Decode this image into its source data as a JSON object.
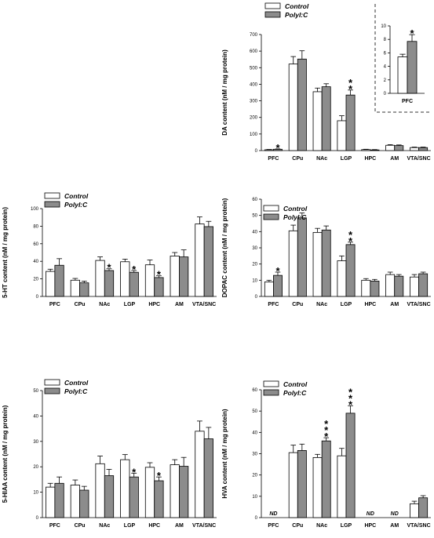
{
  "legend": {
    "control": "Control",
    "polyic": "PolyI:C"
  },
  "colors": {
    "control": "#ffffff",
    "polyic": "#8c8c8c",
    "stroke": "#000000"
  },
  "chart_data": [
    {
      "id": "da",
      "type": "bar",
      "ylabel": "DA content (nM / mg protein)",
      "ylim": [
        0,
        700
      ],
      "yticks": [
        0,
        100,
        200,
        300,
        400,
        500,
        600,
        700
      ],
      "categories": [
        "PFC",
        "CPu",
        "NAc",
        "LGP",
        "HPC",
        "AM",
        "VTA/SNC"
      ],
      "series": [
        {
          "name": "Control",
          "values": [
            5,
            522,
            355,
            180,
            6,
            32,
            18
          ],
          "errors": [
            2,
            45,
            22,
            30,
            2,
            4,
            3
          ]
        },
        {
          "name": "PolyI:C",
          "values": [
            8,
            552,
            385,
            335,
            4,
            30,
            18
          ],
          "errors": [
            2,
            50,
            18,
            30,
            2,
            4,
            3
          ]
        }
      ],
      "significance": [
        {
          "category": "PFC",
          "label": "*"
        },
        {
          "category": "LGP",
          "label": "**"
        }
      ],
      "legend_position": "top",
      "inset": {
        "categories": [
          "PFC"
        ],
        "ylim": [
          0,
          10
        ],
        "yticks": [
          0,
          2,
          4,
          6,
          8,
          10
        ],
        "series": [
          {
            "name": "Control",
            "values": [
              5.4
            ],
            "errors": [
              0.4
            ]
          },
          {
            "name": "PolyI:C",
            "values": [
              7.7
            ],
            "errors": [
              1.0
            ]
          }
        ],
        "significance": [
          {
            "category": "PFC",
            "label": "*"
          }
        ]
      }
    },
    {
      "id": "ht",
      "type": "bar",
      "ylabel": "5-HT content (nM / mg protein)",
      "ylim": [
        0,
        100
      ],
      "yticks": [
        0,
        20,
        40,
        60,
        80,
        100
      ],
      "categories": [
        "PFC",
        "CPu",
        "NAc",
        "LGP",
        "HPC",
        "AM",
        "VTA/SNC"
      ],
      "series": [
        {
          "name": "Control",
          "values": [
            28.5,
            18.5,
            41,
            39.5,
            36,
            46,
            82.5
          ],
          "errors": [
            2.5,
            2,
            4,
            3,
            5.5,
            4,
            8
          ]
        },
        {
          "name": "PolyI:C",
          "values": [
            35.5,
            15.5,
            29.5,
            27.5,
            21.5,
            45,
            79.5
          ],
          "errors": [
            7.5,
            2,
            2,
            2,
            2,
            8,
            6
          ]
        }
      ],
      "significance": [
        {
          "category": "NAc",
          "label": "*"
        },
        {
          "category": "LGP",
          "label": "*"
        },
        {
          "category": "HPC",
          "label": "*"
        }
      ],
      "legend_position": "top-left"
    },
    {
      "id": "dopac",
      "type": "bar",
      "ylabel": "DOPAC content (nM / mg protein)",
      "ylim": [
        0,
        60
      ],
      "yticks": [
        0,
        10,
        20,
        30,
        40,
        50,
        60
      ],
      "categories": [
        "PFC",
        "CPu",
        "NAc",
        "LGP",
        "HPC",
        "AM",
        "VTA/SNC"
      ],
      "series": [
        {
          "name": "Control",
          "values": [
            9,
            40.5,
            39.5,
            22,
            10,
            13.5,
            12
          ],
          "errors": [
            1,
            3.5,
            2.5,
            3,
            1,
            1.5,
            1.5
          ]
        },
        {
          "name": "PolyI:C",
          "values": [
            13,
            48.5,
            41,
            32,
            9.5,
            12.5,
            14
          ],
          "errors": [
            2,
            3,
            2.5,
            1.5,
            1,
            1,
            1
          ]
        }
      ],
      "significance": [
        {
          "category": "PFC",
          "label": "*"
        },
        {
          "category": "LGP",
          "label": "**"
        }
      ],
      "legend_position": "top-left"
    },
    {
      "id": "hiaa",
      "type": "bar",
      "ylabel": "5-HIAA content (nM / mg protein)",
      "ylim": [
        0,
        50
      ],
      "yticks": [
        0,
        10,
        20,
        30,
        40,
        50
      ],
      "categories": [
        "PFC",
        "CPu",
        "NAc",
        "LGP",
        "HPC",
        "AM",
        "VTA/SNC"
      ],
      "series": [
        {
          "name": "Control",
          "values": [
            12,
            12.8,
            21.2,
            22.8,
            19.8,
            20.8,
            34
          ],
          "errors": [
            1.5,
            2,
            3,
            2,
            1.8,
            2,
            4
          ]
        },
        {
          "name": "PolyI:C",
          "values": [
            13.5,
            10.8,
            16.5,
            16,
            14.5,
            20.2,
            31
          ],
          "errors": [
            2.5,
            1.5,
            2.5,
            1.5,
            1.5,
            3.5,
            4.5
          ]
        }
      ],
      "significance": [
        {
          "category": "LGP",
          "label": "*"
        },
        {
          "category": "HPC",
          "label": "*"
        }
      ],
      "legend_position": "top-left"
    },
    {
      "id": "hva",
      "type": "bar",
      "ylabel": "HVA content (nM / mg protein)",
      "ylim": [
        0,
        60
      ],
      "yticks": [
        0,
        10,
        20,
        30,
        40,
        50,
        60
      ],
      "categories": [
        "PFC",
        "CPu",
        "NAc",
        "LGP",
        "HPC",
        "AM",
        "VTA/SNC"
      ],
      "series": [
        {
          "name": "Control",
          "values": [
            null,
            30.5,
            28.2,
            29,
            null,
            null,
            6.5
          ],
          "errors": [
            0,
            3.5,
            1.5,
            3.5,
            0,
            0,
            1.2
          ]
        },
        {
          "name": "PolyI:C",
          "values": [
            null,
            31.5,
            36,
            49,
            null,
            null,
            9.3
          ],
          "errors": [
            0,
            3,
            1.5,
            3.5,
            0,
            0,
            1
          ]
        }
      ],
      "significance": [
        {
          "category": "NAc",
          "label": "***"
        },
        {
          "category": "LGP",
          "label": "***"
        }
      ],
      "not_detected": {
        "categories": [
          "PFC",
          "HPC",
          "AM"
        ],
        "label": "ND"
      },
      "legend_position": "top-left"
    }
  ]
}
